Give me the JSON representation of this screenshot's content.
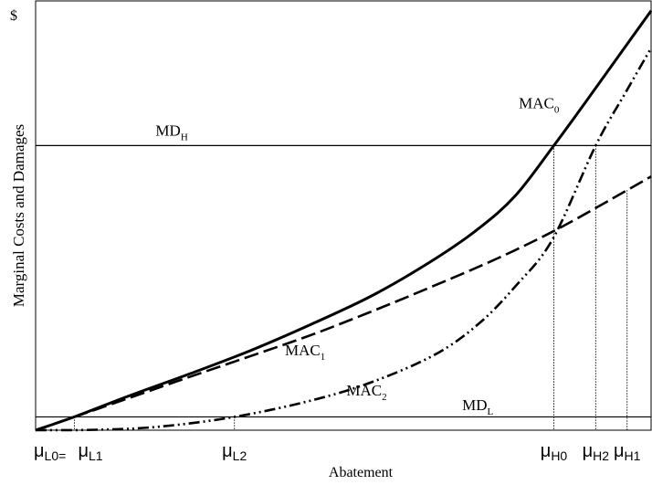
{
  "chart_data": {
    "type": "line",
    "ylabel": "Marginal Costs and Damages",
    "xlabel": "Abatement",
    "y_axis_unit": "$",
    "x_axis_ticks": [
      {
        "symbol": "μ",
        "sub": "L0=",
        "x": 0
      },
      {
        "symbol": "μ",
        "sub": "L1",
        "x": 0.063
      },
      {
        "symbol": "μ",
        "sub": "L2",
        "x": 0.323
      },
      {
        "symbol": "μ",
        "sub": "H0",
        "x": 0.842
      },
      {
        "symbol": "μ",
        "sub": "H2",
        "x": 0.91
      },
      {
        "symbol": "μ",
        "sub": "H1",
        "x": 0.961
      }
    ],
    "xlim": [
      0,
      1
    ],
    "ylim": [
      0,
      1
    ],
    "horizontal_lines": [
      {
        "name": "MD",
        "sub": "H",
        "y": 0.663
      },
      {
        "name": "MD",
        "sub": "L",
        "y": 0.031
      }
    ],
    "series": [
      {
        "name": "MAC",
        "sub": "0",
        "style": "solid",
        "x": [
          0,
          0.063,
          0.15,
          0.25,
          0.35,
          0.45,
          0.55,
          0.65,
          0.72,
          0.78,
          0.842,
          0.9,
          0.95,
          1.0
        ],
        "y": [
          0,
          0.031,
          0.079,
          0.131,
          0.186,
          0.248,
          0.316,
          0.4,
          0.47,
          0.547,
          0.663,
          0.777,
          0.877,
          0.977
        ]
      },
      {
        "name": "MAC",
        "sub": "1",
        "style": "dashed",
        "x": [
          0,
          0.063,
          0.15,
          0.25,
          0.35,
          0.45,
          0.55,
          0.65,
          0.75,
          0.85,
          0.961,
          1.0
        ],
        "y": [
          0,
          0.031,
          0.074,
          0.124,
          0.173,
          0.223,
          0.279,
          0.338,
          0.4,
          0.47,
          0.559,
          0.591
        ]
      },
      {
        "name": "MAC",
        "sub": "2",
        "style": "dash-dot-dot",
        "x": [
          0,
          0.1,
          0.2,
          0.323,
          0.45,
          0.55,
          0.65,
          0.72,
          0.78,
          0.84,
          0.91,
          0.96,
          1.0
        ],
        "y": [
          0,
          0.001,
          0.008,
          0.031,
          0.07,
          0.114,
          0.177,
          0.248,
          0.336,
          0.445,
          0.663,
          0.79,
          0.89
        ]
      }
    ],
    "curve_labels": [
      {
        "name": "MAC",
        "sub": "0",
        "x": 0.785,
        "y": 0.75
      },
      {
        "name": "MAC",
        "sub": "1",
        "x": 0.405,
        "y": 0.174
      },
      {
        "name": "MAC",
        "sub": "2",
        "x": 0.505,
        "y": 0.081
      },
      {
        "name": "MD",
        "sub": "H",
        "x": 0.195,
        "y": 0.686
      },
      {
        "name": "MD",
        "sub": "L",
        "x": 0.693,
        "y": 0.047
      }
    ],
    "grid": false,
    "legend": "none"
  }
}
